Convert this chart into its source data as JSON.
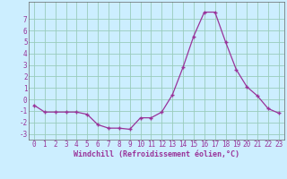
{
  "x": [
    0,
    1,
    2,
    3,
    4,
    5,
    6,
    7,
    8,
    9,
    10,
    11,
    12,
    13,
    14,
    15,
    16,
    17,
    18,
    19,
    20,
    21,
    22,
    23
  ],
  "y": [
    -0.5,
    -1.1,
    -1.1,
    -1.1,
    -1.1,
    -1.3,
    -2.2,
    -2.5,
    -2.5,
    -2.6,
    -1.6,
    -1.6,
    -1.1,
    0.4,
    2.8,
    5.5,
    7.6,
    7.6,
    5.0,
    2.6,
    1.1,
    0.3,
    -0.8,
    -1.2
  ],
  "xlabel": "Windchill (Refroidissement éolien,°C)",
  "ylim": [
    -3.5,
    8.5
  ],
  "xlim": [
    -0.5,
    23.5
  ],
  "yticks": [
    -3,
    -2,
    -1,
    0,
    1,
    2,
    3,
    4,
    5,
    6,
    7
  ],
  "xticks": [
    0,
    1,
    2,
    3,
    4,
    5,
    6,
    7,
    8,
    9,
    10,
    11,
    12,
    13,
    14,
    15,
    16,
    17,
    18,
    19,
    20,
    21,
    22,
    23
  ],
  "line_color": "#993399",
  "marker": "+",
  "bg_color": "#cceeff",
  "grid_color": "#99ccbb",
  "axis_color": "#666666",
  "label_color": "#993399",
  "tick_label_size": 5.5,
  "xlabel_size": 6.0
}
